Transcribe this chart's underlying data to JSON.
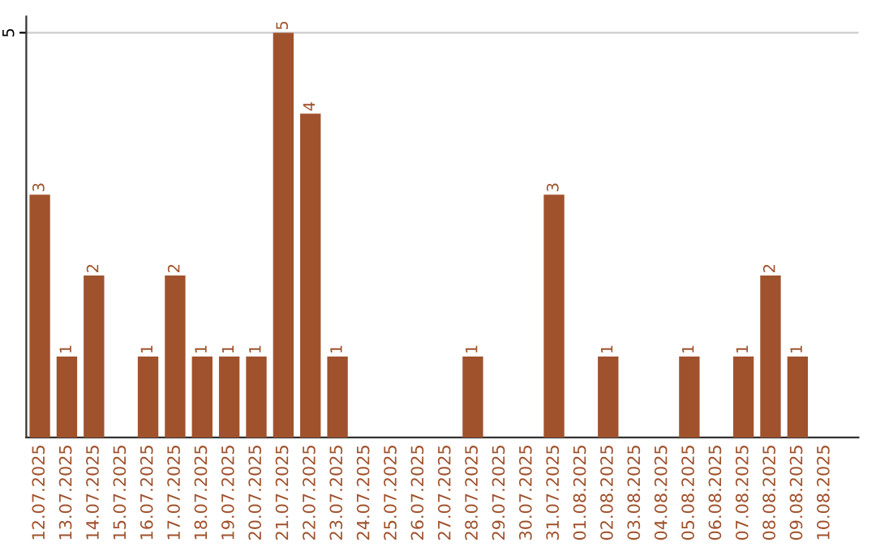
{
  "chart_data": {
    "type": "bar",
    "categories": [
      "12.07.2025",
      "13.07.2025",
      "14.07.2025",
      "15.07.2025",
      "16.07.2025",
      "17.07.2025",
      "18.07.2025",
      "19.07.2025",
      "20.07.2025",
      "21.07.2025",
      "22.07.2025",
      "23.07.2025",
      "24.07.2025",
      "25.07.2025",
      "26.07.2025",
      "27.07.2025",
      "28.07.2025",
      "29.07.2025",
      "30.07.2025",
      "31.07.2025",
      "01.08.2025",
      "02.08.2025",
      "03.08.2025",
      "04.08.2025",
      "05.08.2025",
      "06.08.2025",
      "07.08.2025",
      "08.08.2025",
      "09.08.2025",
      "10.08.2025"
    ],
    "values": [
      3,
      1,
      2,
      0,
      1,
      2,
      1,
      1,
      1,
      5,
      4,
      1,
      0,
      0,
      0,
      0,
      1,
      0,
      0,
      3,
      0,
      1,
      0,
      0,
      1,
      0,
      1,
      2,
      1,
      0
    ],
    "value_labels": [
      "3",
      "1",
      "2",
      null,
      "1",
      "2",
      "1",
      "1",
      "1",
      "5",
      "4",
      "1",
      null,
      null,
      null,
      null,
      "1",
      null,
      null,
      "3",
      null,
      "1",
      null,
      null,
      "1",
      null,
      "1",
      "2",
      "1",
      null
    ],
    "color": "#a0522d",
    "ylim": [
      0,
      5.2
    ],
    "yticks": [
      5
    ],
    "grid": "y"
  }
}
